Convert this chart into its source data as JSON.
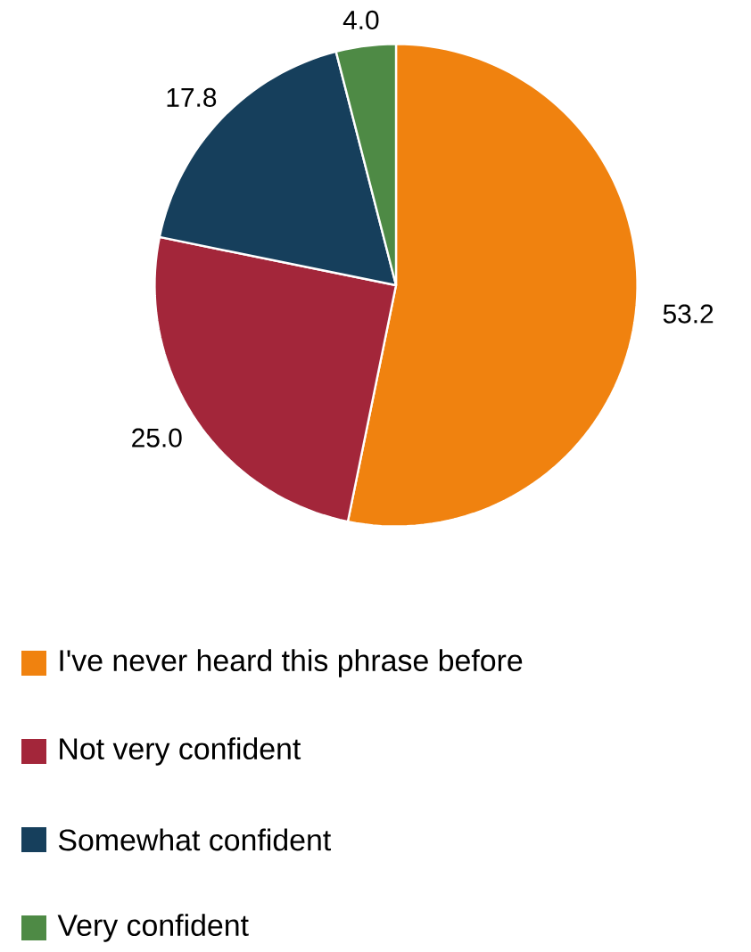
{
  "chart_data": {
    "type": "pie",
    "categories": [
      "I've never heard this phrase before",
      "Not very confident",
      "Somewhat confident",
      "Very confident"
    ],
    "values": [
      53.2,
      25.0,
      17.8,
      4.0
    ],
    "value_labels": [
      "53.2",
      "25.0",
      "17.8",
      "4.0"
    ],
    "colors": [
      "#f0820f",
      "#a3263a",
      "#163f5c",
      "#4e8a45"
    ],
    "legend": "bottom"
  }
}
